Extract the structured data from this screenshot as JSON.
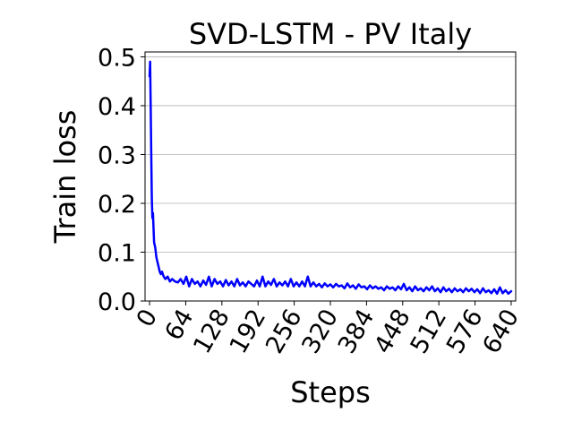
{
  "chart_data": {
    "type": "line",
    "title": "SVD-LSTM - PV Italy",
    "xlabel": "Steps",
    "ylabel": "Train loss",
    "xlim": [
      -8,
      648
    ],
    "ylim": [
      0.0,
      0.51
    ],
    "x_ticks": [
      0,
      64,
      128,
      192,
      256,
      320,
      384,
      448,
      512,
      576,
      640
    ],
    "y_ticks": [
      0.0,
      0.1,
      0.2,
      0.3,
      0.4,
      0.5
    ],
    "grid": "horizontal",
    "series": [
      {
        "color": "#0000ff",
        "x": [
          0,
          1,
          2,
          3,
          4,
          5,
          6,
          8,
          10,
          12,
          14,
          16,
          18,
          20,
          22,
          25,
          28,
          32,
          36,
          40,
          45,
          50,
          55,
          60,
          65,
          70,
          75,
          80,
          85,
          90,
          95,
          100,
          105,
          110,
          115,
          120,
          125,
          130,
          135,
          140,
          145,
          150,
          155,
          160,
          165,
          170,
          175,
          180,
          185,
          190,
          195,
          200,
          205,
          210,
          215,
          220,
          225,
          230,
          235,
          240,
          245,
          250,
          255,
          260,
          265,
          270,
          275,
          280,
          285,
          290,
          295,
          300,
          305,
          310,
          315,
          320,
          325,
          330,
          335,
          340,
          345,
          350,
          355,
          360,
          365,
          370,
          375,
          380,
          385,
          390,
          395,
          400,
          405,
          410,
          415,
          420,
          425,
          430,
          435,
          440,
          445,
          450,
          455,
          460,
          465,
          470,
          475,
          480,
          485,
          490,
          495,
          500,
          505,
          510,
          515,
          520,
          525,
          530,
          535,
          540,
          545,
          550,
          555,
          560,
          565,
          570,
          575,
          580,
          585,
          590,
          595,
          600,
          605,
          610,
          615,
          620,
          625,
          630,
          635,
          640
        ],
        "values": [
          0.46,
          0.49,
          0.4,
          0.3,
          0.21,
          0.17,
          0.18,
          0.12,
          0.11,
          0.09,
          0.08,
          0.07,
          0.06,
          0.055,
          0.06,
          0.05,
          0.045,
          0.05,
          0.04,
          0.045,
          0.04,
          0.038,
          0.045,
          0.035,
          0.05,
          0.03,
          0.045,
          0.035,
          0.04,
          0.03,
          0.042,
          0.033,
          0.05,
          0.03,
          0.045,
          0.035,
          0.04,
          0.03,
          0.043,
          0.032,
          0.04,
          0.03,
          0.045,
          0.032,
          0.038,
          0.03,
          0.04,
          0.035,
          0.03,
          0.042,
          0.03,
          0.05,
          0.03,
          0.04,
          0.033,
          0.045,
          0.03,
          0.038,
          0.032,
          0.04,
          0.03,
          0.045,
          0.03,
          0.038,
          0.03,
          0.04,
          0.03,
          0.05,
          0.03,
          0.038,
          0.03,
          0.035,
          0.028,
          0.036,
          0.03,
          0.034,
          0.028,
          0.035,
          0.03,
          0.032,
          0.026,
          0.036,
          0.028,
          0.032,
          0.025,
          0.034,
          0.028,
          0.03,
          0.024,
          0.032,
          0.026,
          0.03,
          0.025,
          0.028,
          0.022,
          0.03,
          0.025,
          0.028,
          0.022,
          0.03,
          0.024,
          0.035,
          0.022,
          0.028,
          0.02,
          0.03,
          0.022,
          0.026,
          0.02,
          0.028,
          0.022,
          0.03,
          0.02,
          0.026,
          0.018,
          0.028,
          0.02,
          0.025,
          0.018,
          0.026,
          0.02,
          0.024,
          0.018,
          0.026,
          0.02,
          0.025,
          0.018,
          0.024,
          0.016,
          0.026,
          0.018,
          0.022,
          0.016,
          0.024,
          0.015,
          0.028,
          0.016,
          0.022,
          0.015,
          0.02
        ]
      }
    ]
  }
}
